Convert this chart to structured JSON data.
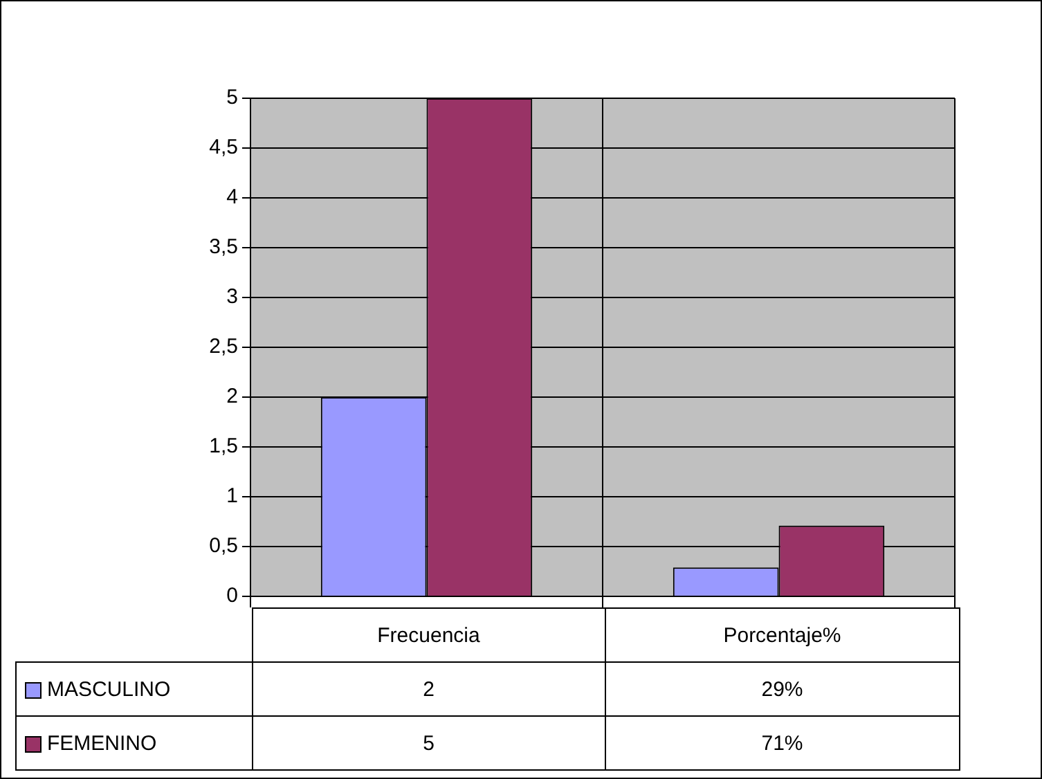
{
  "chart_data": {
    "type": "bar",
    "categories": [
      "Frecuencia",
      "Porcentaje%"
    ],
    "series": [
      {
        "name": "MASCULINO",
        "color": "#9999ff",
        "values": [
          2,
          0.29
        ],
        "value_labels": [
          "2",
          "29%"
        ]
      },
      {
        "name": "FEMENINO",
        "color": "#993366",
        "values": [
          5,
          0.71
        ],
        "value_labels": [
          "5",
          "71%"
        ]
      }
    ],
    "ylim": [
      0,
      5
    ],
    "yticks": [
      0,
      {
        "value": 0.5,
        "label": "0,5"
      },
      1,
      {
        "value": 1.5,
        "label": "1,5"
      },
      2,
      {
        "value": 2.5,
        "label": "2,5"
      },
      3,
      {
        "value": 3.5,
        "label": "3,5"
      },
      4,
      {
        "value": 4.5,
        "label": "4,5"
      },
      5
    ],
    "grid": true,
    "legend": "bottom left"
  }
}
